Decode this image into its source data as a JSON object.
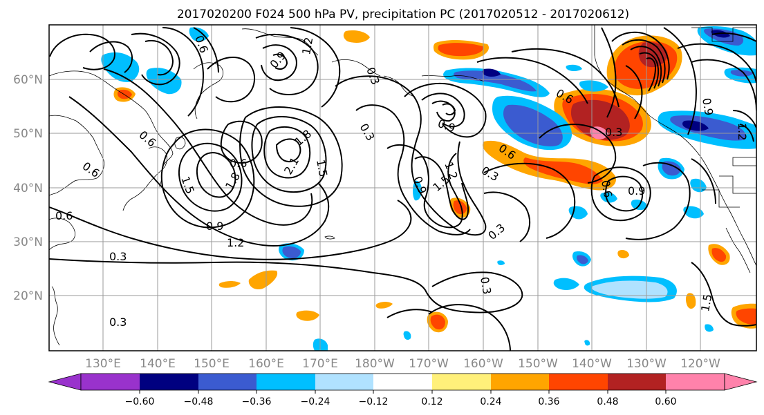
{
  "title": "2017020200 F024 500 hPa PV, precipitation PC (2017020512 - 2017020612)",
  "map": {
    "lat_labels": [
      "60°N",
      "50°N",
      "40°N",
      "30°N",
      "20°N"
    ],
    "lon_labels": [
      "130°E",
      "140°E",
      "150°E",
      "160°E",
      "170°E",
      "180°W",
      "170°W",
      "160°W",
      "150°W",
      "140°W",
      "130°W",
      "120°W"
    ],
    "contour_labels": [
      "0.6",
      "0.6",
      "0.6",
      "0.3",
      "0.3",
      "0.6",
      "0.9",
      "1.2",
      "1.5",
      "1.8",
      "2.1",
      "1.8",
      "1.5",
      "1.2",
      "0.9",
      "0.6",
      "0.3",
      "0.9",
      "1.2",
      "1.5",
      "0.3",
      "0.3",
      "0.6",
      "0.9",
      "0.3",
      "0.6",
      "0.3",
      "0.3",
      "0.9",
      "0.6",
      "0.9",
      "1.2",
      "1.5"
    ]
  },
  "colorbar": {
    "colors": [
      "#9932cc",
      "#000080",
      "#3b5bd0",
      "#00bfff",
      "#b0e2ff",
      "#ffffff",
      "#fff07a",
      "#ffa500",
      "#ff4500",
      "#b22222",
      "#ff82ab",
      "#ff82ab"
    ],
    "tick_labels": [
      "−0.60",
      "−0.48",
      "−0.36",
      "−0.24",
      "−0.12",
      "0.12",
      "0.24",
      "0.36",
      "0.48",
      "0.60"
    ]
  }
}
